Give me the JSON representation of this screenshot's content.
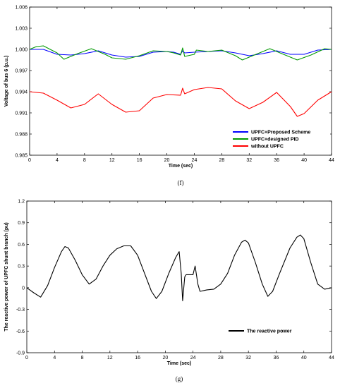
{
  "chart_data": [
    {
      "type": "line",
      "caption": "(f)",
      "xlabel": "Time (sec)",
      "ylabel": "Voltage of bus 6 (p.u.)",
      "xlim": [
        0,
        44
      ],
      "ylim": [
        0.985,
        1.006
      ],
      "xticks": [
        0,
        4,
        8,
        12,
        16,
        20,
        24,
        28,
        32,
        36,
        40,
        44
      ],
      "yticks": [
        "0.985",
        "0.988",
        "0.991",
        "0.994",
        "0.997",
        "1.000",
        "1.003",
        "1.006"
      ],
      "legend_position": "bottom-right",
      "series": [
        {
          "name": "UPFC+Proposed Scheme",
          "color": "#0000ff",
          "points": [
            [
              0,
              1.0
            ],
            [
              2,
              1.0
            ],
            [
              4,
              0.9993
            ],
            [
              6,
              0.9992
            ],
            [
              8,
              0.9994
            ],
            [
              10,
              0.9998
            ],
            [
              12,
              0.9992
            ],
            [
              14,
              0.9989
            ],
            [
              16,
              0.999
            ],
            [
              18,
              0.9996
            ],
            [
              20,
              0.9997
            ],
            [
              21,
              0.9996
            ],
            [
              22,
              0.9993
            ],
            [
              22.3,
              0.9998
            ],
            [
              22.6,
              0.9995
            ],
            [
              24,
              0.9996
            ],
            [
              26,
              0.9997
            ],
            [
              28,
              0.9998
            ],
            [
              30,
              0.9995
            ],
            [
              32,
              0.9991
            ],
            [
              34,
              0.9994
            ],
            [
              36,
              0.9998
            ],
            [
              38,
              0.9993
            ],
            [
              40,
              0.9993
            ],
            [
              42,
              0.9999
            ],
            [
              44,
              1.0
            ]
          ]
        },
        {
          "name": "UPFC+designed PID",
          "color": "#009900",
          "points": [
            [
              0,
              1.0
            ],
            [
              1,
              1.0004
            ],
            [
              2,
              1.0005
            ],
            [
              4,
              0.9995
            ],
            [
              5,
              0.9986
            ],
            [
              7,
              0.9994
            ],
            [
              9,
              1.0001
            ],
            [
              11,
              0.9993
            ],
            [
              12,
              0.9988
            ],
            [
              14,
              0.9986
            ],
            [
              16,
              0.9991
            ],
            [
              18,
              0.9998
            ],
            [
              20,
              0.9997
            ],
            [
              21,
              0.9995
            ],
            [
              22,
              0.9992
            ],
            [
              22.3,
              1.0002
            ],
            [
              22.6,
              0.999
            ],
            [
              24,
              0.9993
            ],
            [
              24.3,
              0.9999
            ],
            [
              26,
              0.9997
            ],
            [
              28,
              0.9999
            ],
            [
              30,
              0.9991
            ],
            [
              31,
              0.9985
            ],
            [
              33,
              0.9993
            ],
            [
              35,
              1.0001
            ],
            [
              37,
              0.9993
            ],
            [
              39,
              0.9985
            ],
            [
              41,
              0.9992
            ],
            [
              43,
              1.0001
            ],
            [
              44,
              1.0
            ]
          ]
        },
        {
          "name": "without UPFC",
          "color": "#ff0000",
          "points": [
            [
              0,
              0.994
            ],
            [
              2,
              0.9938
            ],
            [
              4,
              0.9928
            ],
            [
              6,
              0.9917
            ],
            [
              8,
              0.9922
            ],
            [
              10,
              0.9937
            ],
            [
              12,
              0.9922
            ],
            [
              14,
              0.9911
            ],
            [
              16,
              0.9913
            ],
            [
              18,
              0.9931
            ],
            [
              20,
              0.9936
            ],
            [
              22,
              0.9935
            ],
            [
              22.3,
              0.9945
            ],
            [
              22.6,
              0.9937
            ],
            [
              24,
              0.9943
            ],
            [
              26,
              0.9946
            ],
            [
              28,
              0.9944
            ],
            [
              30,
              0.9927
            ],
            [
              32,
              0.9916
            ],
            [
              34,
              0.9925
            ],
            [
              36,
              0.9939
            ],
            [
              38,
              0.9919
            ],
            [
              39,
              0.9905
            ],
            [
              40,
              0.9909
            ],
            [
              42,
              0.9928
            ],
            [
              44,
              0.994
            ]
          ]
        }
      ]
    },
    {
      "type": "line",
      "caption": "(g)",
      "xlabel": "Time (sec)",
      "ylabel": "The reactive power of UPFC shunt branch (pu)",
      "xlim": [
        0,
        44
      ],
      "ylim": [
        -0.9,
        1.2
      ],
      "xticks": [
        0,
        4,
        8,
        12,
        16,
        20,
        24,
        28,
        32,
        36,
        40,
        44
      ],
      "yticks": [
        "-0.9",
        "-0.6",
        "-0.3",
        "0",
        "0.3",
        "0.6",
        "0.9",
        "1.2"
      ],
      "legend_position": "bottom-right",
      "series": [
        {
          "name": "The reactive power",
          "color": "#000000",
          "points": [
            [
              0,
              0.0
            ],
            [
              1,
              -0.07
            ],
            [
              2,
              -0.13
            ],
            [
              3,
              0.03
            ],
            [
              4,
              0.28
            ],
            [
              5,
              0.5
            ],
            [
              5.5,
              0.57
            ],
            [
              6,
              0.55
            ],
            [
              7,
              0.38
            ],
            [
              8,
              0.18
            ],
            [
              9,
              0.05
            ],
            [
              10,
              0.12
            ],
            [
              11,
              0.3
            ],
            [
              12,
              0.45
            ],
            [
              13,
              0.54
            ],
            [
              14,
              0.58
            ],
            [
              15,
              0.58
            ],
            [
              16,
              0.45
            ],
            [
              17,
              0.2
            ],
            [
              18,
              -0.05
            ],
            [
              18.7,
              -0.15
            ],
            [
              19.5,
              -0.05
            ],
            [
              20.5,
              0.2
            ],
            [
              21.5,
              0.42
            ],
            [
              22,
              0.5
            ],
            [
              22.3,
              0.2
            ],
            [
              22.5,
              -0.18
            ],
            [
              22.8,
              0.15
            ],
            [
              23,
              0.18
            ],
            [
              24,
              0.18
            ],
            [
              24.3,
              0.3
            ],
            [
              24.7,
              0.05
            ],
            [
              25,
              -0.05
            ],
            [
              26,
              -0.03
            ],
            [
              27,
              -0.02
            ],
            [
              28,
              0.05
            ],
            [
              29,
              0.2
            ],
            [
              30,
              0.45
            ],
            [
              31,
              0.63
            ],
            [
              31.5,
              0.66
            ],
            [
              32,
              0.62
            ],
            [
              33,
              0.35
            ],
            [
              34,
              0.05
            ],
            [
              34.8,
              -0.12
            ],
            [
              35.5,
              -0.05
            ],
            [
              36.5,
              0.2
            ],
            [
              38,
              0.55
            ],
            [
              39,
              0.7
            ],
            [
              39.5,
              0.73
            ],
            [
              40,
              0.68
            ],
            [
              41,
              0.35
            ],
            [
              42,
              0.05
            ],
            [
              43,
              -0.02
            ],
            [
              44,
              0.0
            ]
          ]
        }
      ]
    }
  ]
}
